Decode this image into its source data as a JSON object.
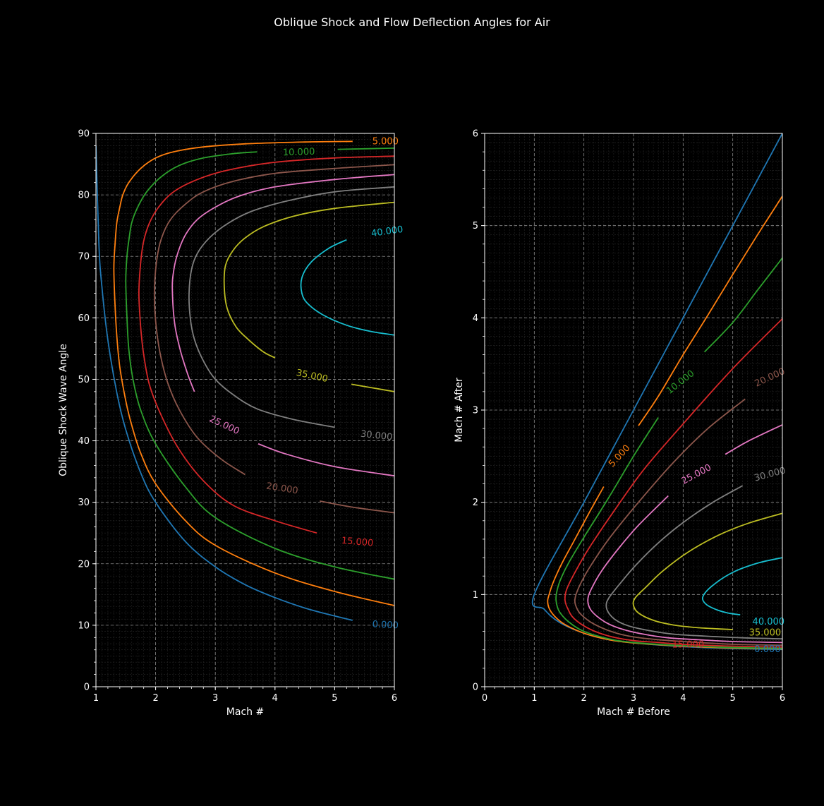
{
  "figure_title": "Oblique Shock and Flow Deflection Angles for Air",
  "chart_data": [
    {
      "type": "line",
      "name": "shock-angle-chart",
      "title": "",
      "xlabel": "Mach #",
      "ylabel": "Oblique Shock Wave Angle",
      "xlim": [
        1,
        6
      ],
      "ylim": [
        0,
        90
      ],
      "xticks": [
        "1",
        "2",
        "3",
        "4",
        "5",
        "6"
      ],
      "yticks": [
        "0",
        "10",
        "20",
        "30",
        "40",
        "50",
        "60",
        "70",
        "80",
        "90"
      ],
      "grid": true,
      "series": [
        {
          "name": "0.000",
          "color": "#1f77b4",
          "label": "0.000",
          "x": [
            1.0,
            1.05,
            1.1,
            1.2,
            1.35,
            1.5,
            1.75,
            2.0,
            2.5,
            3.0,
            3.5,
            4.0,
            4.5,
            5.0,
            5.3
          ],
          "y": [
            88,
            72,
            65,
            56.4,
            47.8,
            41.8,
            34.8,
            30.0,
            23.6,
            19.5,
            16.6,
            14.5,
            12.8,
            11.5,
            10.8
          ]
        },
        {
          "name": "5.000",
          "color": "#ff7f0e",
          "label": "5.000",
          "x": [
            5.3,
            4.5,
            3.5,
            2.8,
            2.3,
            2.0,
            1.75,
            1.55,
            1.45,
            1.4,
            1.35,
            1.32,
            1.3,
            1.32,
            1.35,
            1.4,
            1.5,
            1.6,
            1.75,
            2.0,
            2.5,
            3.0,
            4.0,
            5.0,
            6.0
          ],
          "y": [
            88.7,
            88.6,
            88.3,
            87.8,
            87.0,
            86.0,
            84.3,
            82.0,
            80.0,
            78.0,
            75.5,
            72.0,
            68.0,
            62.0,
            57.0,
            52.0,
            46.5,
            42.5,
            38.0,
            33.0,
            27.0,
            23.0,
            18.5,
            15.5,
            13.2
          ]
        },
        {
          "name": "10.000",
          "color": "#2ca02c",
          "label": "10.000",
          "x": [
            3.7,
            3.3,
            2.8,
            2.4,
            2.1,
            1.85,
            1.7,
            1.6,
            1.55,
            1.52,
            1.5,
            1.52,
            1.55,
            1.62,
            1.75,
            2.0,
            2.5,
            3.0,
            4.0,
            5.0,
            6.0
          ],
          "y": [
            87.0,
            86.7,
            86.0,
            84.8,
            83.0,
            80.5,
            78.0,
            75.5,
            72.5,
            70.0,
            66.0,
            60.0,
            55.0,
            50.0,
            45.0,
            39.5,
            32.5,
            27.5,
            22.5,
            19.5,
            17.5
          ]
        },
        {
          "name": "10.000-upper",
          "color": "#2ca02c",
          "label": "",
          "x": [
            5.05,
            5.5,
            6.0
          ],
          "y": [
            87.4,
            87.5,
            87.6
          ]
        },
        {
          "name": "15.000",
          "color": "#d62728",
          "label": "15.000",
          "x": [
            6.0,
            5.0,
            4.0,
            3.2,
            2.7,
            2.3,
            2.05,
            1.9,
            1.8,
            1.75,
            1.72,
            1.75,
            1.8,
            1.9,
            2.1,
            2.4,
            2.8,
            3.3,
            4.0,
            4.7
          ],
          "y": [
            86.3,
            86.0,
            85.3,
            84.0,
            82.5,
            80.5,
            78.0,
            75.5,
            72.5,
            69.0,
            64.0,
            58.5,
            54.0,
            49.0,
            44.0,
            38.5,
            33.5,
            29.5,
            27.0,
            25.0
          ]
        },
        {
          "name": "20.000",
          "color": "#8c564b",
          "label": "20.000",
          "x": [
            6.0,
            5.0,
            4.0,
            3.3,
            2.8,
            2.5,
            2.25,
            2.1,
            2.02,
            1.98,
            2.0,
            2.07,
            2.2,
            2.4,
            2.7,
            3.1,
            3.5
          ],
          "y": [
            84.9,
            84.3,
            83.5,
            82.2,
            80.5,
            78.5,
            76.0,
            73.0,
            69.5,
            64.5,
            59.5,
            54.5,
            49.5,
            45.0,
            40.5,
            37.0,
            34.5
          ]
        },
        {
          "name": "20.000-lower",
          "color": "#8c564b",
          "label": "",
          "x": [
            4.75,
            5.3,
            6.0
          ],
          "y": [
            30.2,
            29.2,
            28.3
          ]
        },
        {
          "name": "25.000",
          "color": "#e377c2",
          "label": "25.000",
          "x": [
            6.0,
            5.0,
            4.0,
            3.4,
            3.0,
            2.7,
            2.5,
            2.37,
            2.3,
            2.28,
            2.32,
            2.42,
            2.55,
            2.65
          ],
          "y": [
            83.3,
            82.5,
            81.3,
            79.8,
            78.0,
            76.0,
            73.5,
            70.5,
            67.5,
            64.5,
            59.0,
            54.5,
            50.5,
            48.0
          ]
        },
        {
          "name": "25.000-lower",
          "color": "#e377c2",
          "label": "",
          "x": [
            3.72,
            4.2,
            5.0,
            6.0
          ],
          "y": [
            39.5,
            37.8,
            35.8,
            34.3
          ]
        },
        {
          "name": "30.000",
          "color": "#7f7f7f",
          "label": "30.000",
          "x": [
            6.0,
            5.0,
            4.2,
            3.6,
            3.2,
            2.9,
            2.7,
            2.6,
            2.56,
            2.58,
            2.65,
            2.8,
            3.0,
            3.3,
            3.7,
            4.3,
            5.0
          ],
          "y": [
            81.3,
            80.5,
            79.0,
            77.3,
            75.3,
            73.0,
            70.5,
            67.8,
            64.0,
            60.0,
            56.5,
            53.0,
            50.0,
            47.5,
            45.2,
            43.5,
            42.2
          ]
        },
        {
          "name": "35.000",
          "color": "#bcbd22",
          "label": "35.000",
          "x": [
            6.0,
            5.0,
            4.3,
            3.8,
            3.5,
            3.3,
            3.17,
            3.15,
            3.2,
            3.35,
            3.55,
            3.8,
            4.0
          ],
          "y": [
            78.8,
            77.8,
            76.5,
            74.8,
            73.0,
            71.0,
            68.5,
            65.0,
            61.5,
            58.5,
            56.5,
            54.5,
            53.5
          ]
        },
        {
          "name": "35.000-lower",
          "color": "#bcbd22",
          "label": "",
          "x": [
            5.28,
            5.7,
            6.0
          ],
          "y": [
            49.2,
            48.5,
            48.0
          ]
        },
        {
          "name": "40.000",
          "color": "#17becf",
          "label": "40.000",
          "x": [
            5.2,
            4.9,
            4.6,
            4.45,
            4.45,
            4.55,
            4.8,
            5.2,
            5.6,
            6.0
          ],
          "y": [
            72.7,
            71.3,
            69.0,
            66.5,
            64.0,
            62.3,
            60.5,
            58.8,
            57.8,
            57.2
          ]
        }
      ],
      "contour_labels": [
        {
          "text": "0.000",
          "color": "#1f77b4",
          "x": 5.85,
          "y": 10.0,
          "rotate": 3
        },
        {
          "text": "5.000",
          "color": "#ff7f0e",
          "x": 5.85,
          "y": 88.6,
          "rotate": 0
        },
        {
          "text": "10.000",
          "color": "#2ca02c",
          "x": 4.4,
          "y": 86.9,
          "rotate": -2
        },
        {
          "text": "15.000",
          "color": "#d62728",
          "x": 5.38,
          "y": 23.5,
          "rotate": 5
        },
        {
          "text": "20.000",
          "color": "#8c564b",
          "x": 4.12,
          "y": 32.2,
          "rotate": 9
        },
        {
          "text": "25.000",
          "color": "#e377c2",
          "x": 3.15,
          "y": 42.5,
          "rotate": 25
        },
        {
          "text": "30.000",
          "color": "#7f7f7f",
          "x": 5.7,
          "y": 40.8,
          "rotate": 6
        },
        {
          "text": "35.000",
          "color": "#bcbd22",
          "x": 4.62,
          "y": 50.5,
          "rotate": 12
        },
        {
          "text": "40.000",
          "color": "#17becf",
          "x": 5.88,
          "y": 74.0,
          "rotate": -8
        }
      ]
    },
    {
      "type": "line",
      "name": "mach-after-chart",
      "title": "",
      "xlabel": "Mach # Before",
      "ylabel": "Mach # After",
      "xlim": [
        0,
        6
      ],
      "ylim": [
        0,
        6
      ],
      "xticks": [
        "0",
        "1",
        "2",
        "3",
        "4",
        "5",
        "6"
      ],
      "yticks": [
        "0",
        "1",
        "2",
        "3",
        "4",
        "5",
        "6"
      ],
      "grid": true,
      "series": [
        {
          "name": "0.000",
          "color": "#1f77b4",
          "label": "0.000",
          "x": [
            6.0,
            5.0,
            4.0,
            3.0,
            2.0,
            1.0,
            1.2,
            1.5,
            2.0,
            2.5,
            3.0,
            4.0,
            5.0,
            6.0
          ],
          "y": [
            6.0,
            5.0,
            4.0,
            3.0,
            2.0,
            1.0,
            0.84,
            0.7,
            0.58,
            0.51,
            0.475,
            0.435,
            0.415,
            0.404
          ]
        },
        {
          "name": "5.000",
          "color": "#ff7f0e",
          "label": "5.000",
          "x": [
            6.0,
            5.5,
            5.0,
            4.5,
            4.0,
            3.5,
            3.1
          ],
          "y": [
            5.32,
            4.9,
            4.47,
            4.03,
            3.6,
            3.15,
            2.83
          ]
        },
        {
          "name": "5.000-lower",
          "color": "#ff7f0e",
          "label": "",
          "x": [
            2.4,
            2.1,
            1.8,
            1.55,
            1.38,
            1.3,
            1.27,
            1.3,
            1.4,
            1.6,
            2.0,
            2.5,
            3.0,
            4.0,
            5.0,
            6.0
          ],
          "y": [
            2.17,
            1.88,
            1.58,
            1.33,
            1.13,
            1.0,
            0.93,
            0.85,
            0.77,
            0.68,
            0.58,
            0.51,
            0.475,
            0.44,
            0.42,
            0.41
          ]
        },
        {
          "name": "10.000",
          "color": "#2ca02c",
          "label": "10.000",
          "x": [
            6.0,
            5.5,
            5.0,
            4.43
          ],
          "y": [
            4.65,
            4.3,
            3.95,
            3.63
          ]
        },
        {
          "name": "10.000-lower",
          "color": "#2ca02c",
          "label": "",
          "x": [
            3.5,
            3.0,
            2.5,
            2.0,
            1.7,
            1.52,
            1.45,
            1.44,
            1.5,
            1.7,
            2.0,
            2.5,
            3.0,
            4.0,
            5.0,
            6.0
          ],
          "y": [
            2.92,
            2.5,
            2.05,
            1.62,
            1.35,
            1.15,
            1.02,
            0.93,
            0.82,
            0.7,
            0.6,
            0.52,
            0.48,
            0.445,
            0.425,
            0.415
          ]
        },
        {
          "name": "15.000",
          "color": "#d62728",
          "label": "15.000",
          "x": [
            6.0,
            5.0,
            4.0,
            3.2,
            2.6,
            2.1,
            1.8,
            1.65,
            1.62,
            1.68,
            1.8,
            2.1,
            2.5,
            3.0,
            3.5,
            4.0,
            5.0,
            6.0
          ],
          "y": [
            3.99,
            3.45,
            2.85,
            2.35,
            1.9,
            1.5,
            1.22,
            1.05,
            0.94,
            0.84,
            0.74,
            0.63,
            0.55,
            0.5,
            0.48,
            0.46,
            0.44,
            0.43
          ]
        },
        {
          "name": "20.000",
          "color": "#8c564b",
          "label": "20.000",
          "x": [
            5.25,
            4.5,
            3.8,
            3.1,
            2.5,
            2.1,
            1.9,
            1.82,
            1.85,
            1.95,
            2.2,
            2.6,
            3.0,
            3.5,
            4.0,
            5.0,
            6.0
          ],
          "y": [
            3.12,
            2.8,
            2.43,
            2.0,
            1.6,
            1.28,
            1.08,
            0.95,
            0.86,
            0.78,
            0.68,
            0.59,
            0.54,
            0.51,
            0.49,
            0.46,
            0.45
          ]
        },
        {
          "name": "25.000",
          "color": "#e377c2",
          "label": "25.000",
          "x": [
            3.7,
            3.1,
            2.7,
            2.35,
            2.15,
            2.08,
            2.12,
            2.25,
            2.5,
            2.8,
            3.2,
            3.7,
            4.3,
            5.0,
            6.0
          ],
          "y": [
            2.07,
            1.75,
            1.5,
            1.25,
            1.06,
            0.95,
            0.85,
            0.77,
            0.68,
            0.62,
            0.57,
            0.53,
            0.51,
            0.49,
            0.48
          ]
        },
        {
          "name": "25.000-upper",
          "color": "#e377c2",
          "label": "",
          "x": [
            4.85,
            5.3,
            6.0
          ],
          "y": [
            2.52,
            2.66,
            2.84
          ]
        },
        {
          "name": "30.000",
          "color": "#7f7f7f",
          "label": "30.000",
          "x": [
            5.2,
            4.6,
            4.0,
            3.5,
            3.05,
            2.7,
            2.5,
            2.45,
            2.5,
            2.65,
            2.9,
            3.3,
            3.8,
            4.4,
            5.2,
            6.0
          ],
          "y": [
            2.18,
            2.0,
            1.78,
            1.56,
            1.32,
            1.1,
            0.96,
            0.88,
            0.8,
            0.72,
            0.66,
            0.61,
            0.57,
            0.55,
            0.53,
            0.52
          ]
        },
        {
          "name": "35.000",
          "color": "#bcbd22",
          "label": "35.000",
          "x": [
            6.0,
            5.3,
            4.7,
            4.1,
            3.6,
            3.25,
            3.03,
            3.0,
            3.1,
            3.4,
            3.8,
            4.3,
            5.0
          ],
          "y": [
            1.88,
            1.77,
            1.64,
            1.46,
            1.26,
            1.08,
            0.96,
            0.88,
            0.8,
            0.72,
            0.67,
            0.64,
            0.62
          ]
        },
        {
          "name": "40.000",
          "color": "#17becf",
          "label": "40.000",
          "x": [
            6.0,
            5.5,
            5.0,
            4.6,
            4.4,
            4.45,
            4.65,
            4.9,
            5.15
          ],
          "y": [
            1.4,
            1.34,
            1.24,
            1.1,
            0.98,
            0.9,
            0.84,
            0.8,
            0.78
          ]
        }
      ],
      "contour_labels": [
        {
          "text": "0.000",
          "color": "#1f77b4",
          "x": 5.7,
          "y": 0.4,
          "rotate": 0
        },
        {
          "text": "5.000",
          "color": "#ff7f0e",
          "x": 2.72,
          "y": 2.5,
          "rotate": -47
        },
        {
          "text": "10.000",
          "color": "#2ca02c",
          "x": 3.95,
          "y": 3.3,
          "rotate": -38
        },
        {
          "text": "15.000",
          "color": "#d62728",
          "x": 4.1,
          "y": 0.45,
          "rotate": 0
        },
        {
          "text": "20.000",
          "color": "#8c564b",
          "x": 5.75,
          "y": 3.35,
          "rotate": -25
        },
        {
          "text": "25.000",
          "color": "#e377c2",
          "x": 4.27,
          "y": 2.3,
          "rotate": -28
        },
        {
          "text": "30.000",
          "color": "#7f7f7f",
          "x": 5.75,
          "y": 2.3,
          "rotate": -15
        },
        {
          "text": "35.000",
          "color": "#bcbd22",
          "x": 5.65,
          "y": 0.58,
          "rotate": 0
        },
        {
          "text": "40.000",
          "color": "#17becf",
          "x": 5.72,
          "y": 0.7,
          "rotate": 0
        }
      ]
    }
  ]
}
